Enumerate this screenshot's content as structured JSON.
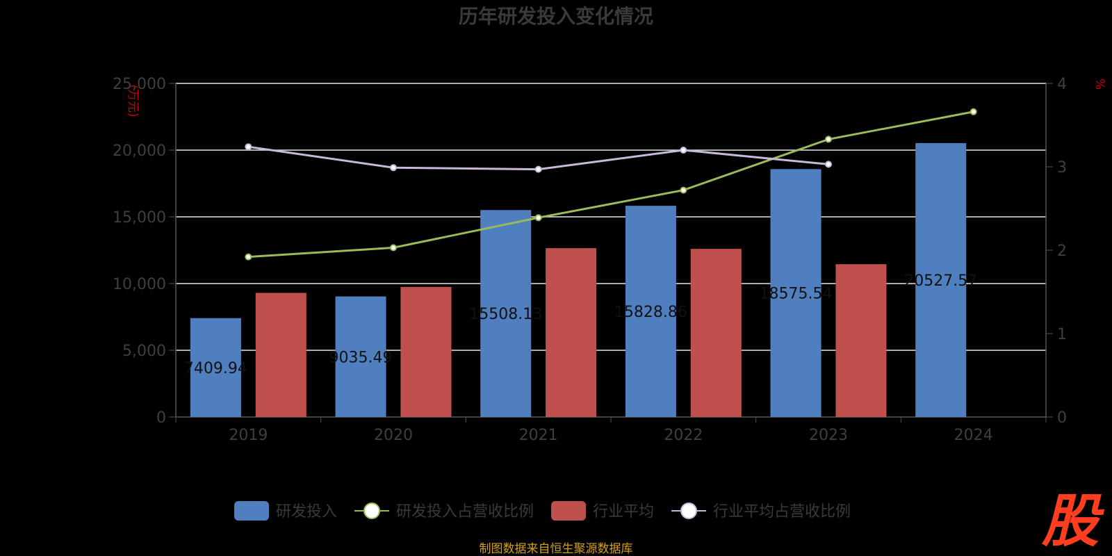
{
  "chart_data": {
    "type": "bar",
    "title": "历年研发投入变化情况",
    "categories": [
      "2019",
      "2020",
      "2021",
      "2022",
      "2023",
      "2024"
    ],
    "left_axis_unit": "(万元)",
    "right_axis_unit": "%",
    "ylim_left": [
      0,
      25000
    ],
    "ylim_right": [
      0,
      4
    ],
    "left_ticks": [
      "0",
      "5,000",
      "10,000",
      "15,000",
      "20,000",
      "25,000"
    ],
    "right_ticks": [
      "0",
      "1",
      "2",
      "3",
      "4"
    ],
    "grid": true,
    "legend_position": "bottom",
    "series": [
      {
        "name": "研发投入",
        "type": "bar",
        "axis": "left",
        "color": "#4f7fbf",
        "values": [
          7409.94,
          9035.49,
          15508.13,
          15828.86,
          18575.54,
          20527.57
        ],
        "labels": [
          "7409.94",
          "9035.49",
          "15508.13",
          "15828.86",
          "18575.54",
          "20527.57"
        ]
      },
      {
        "name": "研发投入占营收比例",
        "type": "line",
        "axis": "right",
        "color": "#9bbb59",
        "values": [
          1.92,
          2.03,
          2.39,
          2.72,
          3.33,
          3.66
        ]
      },
      {
        "name": "行业平均",
        "type": "bar",
        "axis": "left",
        "color": "#c0504d",
        "values": [
          9300,
          9750,
          12650,
          12600,
          11450,
          null
        ]
      },
      {
        "name": "行业平均占营收比例",
        "type": "line",
        "axis": "right",
        "color": "#c8b8dc",
        "values": [
          3.24,
          2.99,
          2.97,
          3.2,
          3.03,
          null
        ]
      }
    ]
  },
  "source_text": "制图数据来自恒生聚源数据库",
  "logo_text": "股"
}
